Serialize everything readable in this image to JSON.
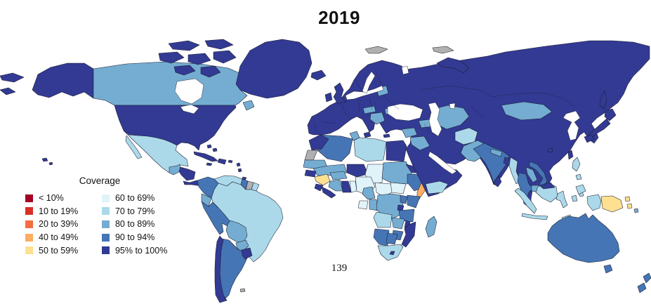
{
  "figure": {
    "title": "2019",
    "page_number": "139"
  },
  "legend": {
    "title": "Coverage",
    "no_data_color": "#b0b0b0",
    "items": [
      {
        "label": "< 10%",
        "bucket": "lt10",
        "color": "#a50026"
      },
      {
        "label": "10 to 19%",
        "bucket": "t10_19",
        "color": "#d73027"
      },
      {
        "label": "20 to 39%",
        "bucket": "t20_39",
        "color": "#f46d43"
      },
      {
        "label": "40 to 49%",
        "bucket": "t40_49",
        "color": "#fdae61"
      },
      {
        "label": "50 to 59%",
        "bucket": "t50_59",
        "color": "#fee090"
      },
      {
        "label": "60 to 69%",
        "bucket": "t60_69",
        "color": "#e0f3f8"
      },
      {
        "label": "70 to 79%",
        "bucket": "t70_79",
        "color": "#abd9e9"
      },
      {
        "label": "80 to 89%",
        "bucket": "t80_89",
        "color": "#74add1"
      },
      {
        "label": "90 to 94%",
        "bucket": "t90_94",
        "color": "#4575b4"
      },
      {
        "label": "95% to 100%",
        "bucket": "t95_100",
        "color": "#323a93"
      }
    ]
  },
  "map_data": {
    "type": "choropleth_world_map",
    "regions": {
      "aleutians-west-1": "t95_100",
      "aleutians-west-2": "t95_100",
      "alaska": "t95_100",
      "canada": "t80_89",
      "newfoundland": "t80_89",
      "arctic-1": "t95_100",
      "arctic-2": "t95_100",
      "arctic-3": "t95_100",
      "arctic-4": "t95_100",
      "arctic-5": "t95_100",
      "arctic-6": "t95_100",
      "arctic-7": "t95_100",
      "greenland": "t95_100",
      "iceland": "t95_100",
      "usa": "t95_100",
      "hawaii": "t95_100",
      "mexico": "t70_79",
      "baja-california": "t70_79",
      "guatemala": "t80_89",
      "honduras-nicaragua": "t95_100",
      "costa-rica-panama": "t95_100",
      "cuba": "t95_100",
      "jamaica": "t95_100",
      "hispaniola": "t95_100",
      "puerto-rico": "t95_100",
      "bahamas": "t95_100",
      "lesser-antilles": "t95_100",
      "trinidad": "t95_100",
      "colombia": "t90_94",
      "venezuela": "t70_79",
      "guyana": "t90_94",
      "suriname": "no_data",
      "french-guiana": "t70_79",
      "brazil": "t70_79",
      "ecuador": "t80_89",
      "peru": "t90_94",
      "bolivia": "t80_89",
      "paraguay": "t80_89",
      "argentina": "t90_94",
      "uruguay": "t95_100",
      "chile": "t95_100",
      "falkland-islands": "no_data",
      "eurasia": "t95_100",
      "uk": "t95_100",
      "ireland": "t95_100",
      "sicily": "t95_100",
      "crete": "t95_100",
      "cyprus": "t95_100",
      "svalbard": "no_data",
      "franz-josef-land": "no_data",
      "novaya-zemlya": "t95_100",
      "sakhalin": "t95_100",
      "baltic-states": "t80_89",
      "austria": "t80_89",
      "balkans-west": "t80_89",
      "balkans-east": "t80_89",
      "caucasus": "t80_89",
      "central-asia": "t80_89",
      "afghanistan": "t70_79",
      "pakistan": "t80_89",
      "india": "t90_94",
      "nepal": "t80_89",
      "bangladesh": "t95_100",
      "sri-lanka": "t95_100",
      "myanmar": "t70_79",
      "thailand": "t90_94",
      "laos": "t80_89",
      "cambodia": "t80_89",
      "vietnam": "t90_94",
      "mongolia": "t80_89",
      "syria": "t80_89",
      "iraq": "t80_89",
      "yemen": "t70_79",
      "japan-hokkaido": "t95_100",
      "japan-honshu": "t95_100",
      "japan-kyushu": "t95_100",
      "taiwan": "t95_100",
      "hainan": "t95_100",
      "morocco": "t95_100",
      "western-sahara": "no_data",
      "algeria": "t90_94",
      "tunisia": "t80_89",
      "libya": "t70_79",
      "egypt": "t95_100",
      "mauritania": "t80_89",
      "mali": "t80_89",
      "niger": "t95_100",
      "chad": "t60_69",
      "sudan": "t80_89",
      "eritrea": "t95_100",
      "ethiopia": "t90_94",
      "somalia": "t40_49",
      "senegal": "t95_100",
      "guinea": "t50_59",
      "sierra-leone": "t95_100",
      "liberia": "t95_100",
      "ivory-coast": "t80_89",
      "ghana": "t95_100",
      "burkina-faso": "t80_89",
      "togo-benin": "t60_69",
      "nigeria": "t60_69",
      "cameroon": "t80_89",
      "central-african-republic": "t60_69",
      "south-sudan": "t60_69",
      "gabon": "t60_69",
      "congo": "t80_89",
      "drc": "t80_89",
      "uganda": "t90_94",
      "kenya": "t90_94",
      "rwanda-burundi": "t95_100",
      "tanzania": "t90_94",
      "angola": "t70_79",
      "zambia": "t80_89",
      "malawi": "t95_100",
      "mozambique": "t95_100",
      "zimbabwe": "t90_94",
      "namibia": "t90_94",
      "botswana": "t90_94",
      "south-africa": "t70_79",
      "lesotho": "t95_100",
      "madagascar": "t80_89",
      "indonesia-sumatra": "t70_79",
      "indonesia-java": "t70_79",
      "indonesia-borneo": "t70_79",
      "malaysia-borneo": "t95_100",
      "indonesia-sulawesi": "t70_79",
      "indonesia-moluccas": "t70_79",
      "indonesia-timor": "t70_79",
      "indonesia-west-papua": "t70_79",
      "philippines-luzon": "t70_79",
      "philippines-visayas": "t70_79",
      "philippines-mindanao": "t70_79",
      "papua-new-guinea": "t50_59",
      "png-islands": "t50_59",
      "solomon-islands": "t80_89",
      "australia": "t90_94",
      "tasmania": "t90_94",
      "new-zealand-north": "t90_94",
      "new-zealand-south": "t90_94"
    }
  }
}
